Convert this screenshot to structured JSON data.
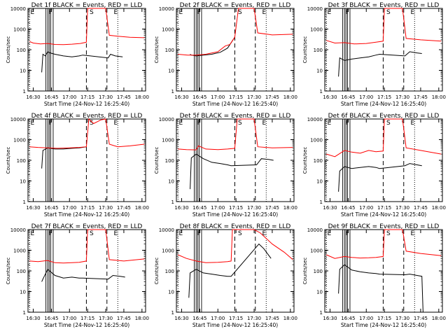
{
  "figure": {
    "xlabel": "Start Time (24-Nov-12 16:25:40)",
    "ylabel": "Counts/sec",
    "xticks": [
      "16:30",
      "16:45",
      "17:00",
      "17:15",
      "17:30",
      "17:45",
      "18:00"
    ],
    "yticks": [
      "1",
      "10",
      "100",
      "1000",
      "10000"
    ],
    "colors": {
      "events": "#000000",
      "lld": "#ff0000",
      "axes": "#000000"
    }
  },
  "chart_data": [
    {
      "type": "line",
      "title": "Det 1f BLACK = Events, RED = LLD",
      "yscale": "log",
      "xlim": [
        "16:25:40",
        "18:03:00"
      ],
      "ylim": [
        1,
        10000
      ],
      "markers": [
        {
          "label": "E",
          "x": "16:27"
        },
        {
          "label": "F",
          "x": "16:42"
        },
        {
          "label": "S",
          "x": "17:16"
        },
        {
          "label": "E",
          "x": "17:36"
        }
      ],
      "series": [
        {
          "name": "Events",
          "x": [
            "16:37",
            "16:38",
            "16:40",
            "16:42",
            "16:44",
            "16:48",
            "16:55",
            "17:02",
            "17:08",
            "17:11",
            "17:32",
            "17:34",
            "17:38",
            "17:44"
          ],
          "values": [
            8,
            60,
            50,
            80,
            70,
            60,
            50,
            45,
            50,
            55,
            40,
            60,
            50,
            45
          ]
        },
        {
          "name": "LLD",
          "x": [
            "16:27",
            "16:30",
            "16:36",
            "16:42",
            "16:48",
            "16:55",
            "17:02",
            "17:09",
            "17:14",
            "17:15",
            "17:30",
            "17:33",
            "17:40",
            "17:50",
            "18:02"
          ],
          "values": [
            250,
            210,
            190,
            200,
            180,
            175,
            185,
            200,
            230,
            10000,
            10000,
            500,
            450,
            400,
            380
          ]
        }
      ]
    },
    {
      "type": "line",
      "title": "Det 2f BLACK = Events, RED = LLD",
      "yscale": "log",
      "xlim": [
        "16:25:40",
        "18:03:00"
      ],
      "ylim": [
        1,
        10000
      ],
      "markers": [
        {
          "label": "E",
          "x": "16:27"
        },
        {
          "label": "F",
          "x": "16:42"
        },
        {
          "label": "S",
          "x": "17:16"
        },
        {
          "label": "E",
          "x": "17:36"
        }
      ],
      "series": [
        {
          "name": "Events",
          "x": [
            "16:37",
            "16:38",
            "16:42",
            "16:48",
            "16:55",
            "17:02",
            "17:08",
            "17:14"
          ],
          "values": [
            60,
            55,
            50,
            55,
            60,
            75,
            120,
            400
          ]
        },
        {
          "name": "LLD",
          "x": [
            "16:27",
            "16:35",
            "16:42",
            "16:50",
            "17:00",
            "17:06",
            "17:10",
            "17:14",
            "17:17",
            "17:30",
            "17:33",
            "17:45",
            "18:02"
          ],
          "values": [
            60,
            55,
            55,
            60,
            80,
            150,
            180,
            400,
            10000,
            10000,
            650,
            520,
            560
          ]
        }
      ]
    },
    {
      "type": "line",
      "title": "Det 3f BLACK = Events, RED = LLD",
      "yscale": "log",
      "xlim": [
        "16:25:40",
        "18:03:00"
      ],
      "ylim": [
        1,
        10000
      ],
      "markers": [
        {
          "label": "E",
          "x": "16:27"
        },
        {
          "label": "F",
          "x": "16:42"
        },
        {
          "label": "S",
          "x": "17:16"
        },
        {
          "label": "E",
          "x": "17:36"
        }
      ],
      "series": [
        {
          "name": "Events",
          "x": [
            "16:37",
            "16:38",
            "16:42",
            "16:48",
            "16:55",
            "17:02",
            "17:08",
            "17:11",
            "17:32",
            "17:36",
            "17:42",
            "17:46"
          ],
          "values": [
            5,
            40,
            30,
            35,
            40,
            45,
            55,
            60,
            50,
            80,
            70,
            65
          ]
        },
        {
          "name": "LLD",
          "x": [
            "16:27",
            "16:34",
            "16:42",
            "16:50",
            "17:00",
            "17:08",
            "17:14",
            "17:15",
            "17:30",
            "17:33",
            "17:45",
            "18:02"
          ],
          "values": [
            280,
            210,
            220,
            190,
            200,
            230,
            260,
            10000,
            10000,
            350,
            300,
            260
          ]
        }
      ]
    },
    {
      "type": "line",
      "title": "Det 4f BLACK = Events, RED = LLD",
      "yscale": "log",
      "xlim": [
        "16:25:40",
        "18:03:00"
      ],
      "ylim": [
        1,
        10000
      ],
      "markers": [
        {
          "label": "E",
          "x": "16:27"
        },
        {
          "label": "F",
          "x": "16:42"
        },
        {
          "label": "S",
          "x": "17:16"
        },
        {
          "label": "E",
          "x": "17:36"
        }
      ],
      "series": [
        {
          "name": "Events",
          "x": [
            "16:37",
            "16:38",
            "16:42",
            "16:48",
            "16:55",
            "17:02",
            "17:08",
            "17:14"
          ],
          "values": [
            40,
            300,
            400,
            350,
            350,
            380,
            400,
            450
          ]
        },
        {
          "name": "LLD",
          "x": [
            "16:27",
            "16:34",
            "16:42",
            "16:50",
            "17:00",
            "17:08",
            "17:14",
            "17:16",
            "17:20",
            "17:26",
            "17:30",
            "17:33",
            "17:40",
            "17:50",
            "18:02"
          ],
          "values": [
            450,
            420,
            400,
            380,
            400,
            420,
            450,
            10000,
            6000,
            9000,
            10000,
            600,
            450,
            500,
            600
          ]
        }
      ]
    },
    {
      "type": "line",
      "title": "Det 5f BLACK = Events, RED = LLD",
      "yscale": "log",
      "xlim": [
        "16:25:40",
        "18:03:00"
      ],
      "ylim": [
        1,
        10000
      ],
      "markers": [
        {
          "label": "E",
          "x": "16:27"
        },
        {
          "label": "F",
          "x": "16:42"
        },
        {
          "label": "S",
          "x": "17:16"
        },
        {
          "label": "E",
          "x": "17:36"
        }
      ],
      "series": [
        {
          "name": "Events",
          "x": [
            "16:37",
            "16:38",
            "16:42",
            "16:48",
            "16:55",
            "17:02",
            "17:08",
            "17:11",
            "17:32",
            "17:36",
            "17:42",
            "17:46"
          ],
          "values": [
            4,
            130,
            200,
            120,
            80,
            70,
            60,
            55,
            60,
            120,
            110,
            100
          ]
        },
        {
          "name": "LLD",
          "x": [
            "16:27",
            "16:34",
            "16:42",
            "16:44",
            "16:50",
            "17:00",
            "17:08",
            "17:14",
            "17:16",
            "17:30",
            "17:33",
            "17:45",
            "18:02"
          ],
          "values": [
            350,
            330,
            320,
            500,
            350,
            330,
            350,
            380,
            10000,
            10000,
            450,
            400,
            420
          ]
        }
      ]
    },
    {
      "type": "line",
      "title": "Det 6f BLACK = Events, RED = LLD",
      "yscale": "log",
      "xlim": [
        "16:25:40",
        "18:03:00"
      ],
      "ylim": [
        1,
        10000
      ],
      "markers": [
        {
          "label": "E",
          "x": "16:27"
        },
        {
          "label": "F",
          "x": "16:42"
        },
        {
          "label": "S",
          "x": "17:16"
        },
        {
          "label": "E",
          "x": "17:36"
        }
      ],
      "series": [
        {
          "name": "Events",
          "x": [
            "16:37",
            "16:38",
            "16:42",
            "16:48",
            "16:55",
            "17:02",
            "17:08",
            "17:11",
            "17:32",
            "17:36",
            "17:42",
            "17:46"
          ],
          "values": [
            3,
            30,
            50,
            40,
            45,
            50,
            45,
            40,
            55,
            70,
            60,
            55
          ]
        },
        {
          "name": "LLD",
          "x": [
            "16:27",
            "16:34",
            "16:42",
            "16:48",
            "16:55",
            "17:02",
            "17:08",
            "17:14",
            "17:15",
            "17:30",
            "17:33",
            "17:45",
            "18:02"
          ],
          "values": [
            200,
            150,
            300,
            250,
            220,
            300,
            260,
            280,
            10000,
            10000,
            400,
            300,
            200
          ]
        }
      ]
    },
    {
      "type": "line",
      "title": "Det 7f BLACK = Events, RED = LLD",
      "yscale": "log",
      "xlim": [
        "16:25:40",
        "18:03:00"
      ],
      "ylim": [
        1,
        10000
      ],
      "markers": [
        {
          "label": "E",
          "x": "16:27"
        },
        {
          "label": "F",
          "x": "16:42"
        },
        {
          "label": "S",
          "x": "17:16"
        },
        {
          "label": "E",
          "x": "17:36"
        }
      ],
      "series": [
        {
          "name": "Events",
          "x": [
            "16:37",
            "16:38",
            "16:42",
            "16:48",
            "16:55",
            "17:02",
            "17:08",
            "17:11",
            "17:32",
            "17:36",
            "17:42",
            "17:46"
          ],
          "values": [
            30,
            40,
            120,
            60,
            45,
            50,
            45,
            45,
            40,
            60,
            55,
            50
          ]
        },
        {
          "name": "LLD",
          "x": [
            "16:27",
            "16:34",
            "16:42",
            "16:48",
            "16:55",
            "17:02",
            "17:08",
            "17:14",
            "17:15",
            "17:30",
            "17:33",
            "17:45",
            "18:02"
          ],
          "values": [
            300,
            280,
            320,
            250,
            240,
            250,
            260,
            300,
            10000,
            10000,
            350,
            300,
            380
          ]
        }
      ]
    },
    {
      "type": "line",
      "title": "Det 8f BLACK = Events, RED = LLD",
      "yscale": "log",
      "xlim": [
        "16:25:40",
        "18:03:00"
      ],
      "ylim": [
        1,
        10000
      ],
      "markers": [
        {
          "label": "E",
          "x": "16:27"
        },
        {
          "label": "F",
          "x": "16:42"
        },
        {
          "label": "S",
          "x": "17:16"
        },
        {
          "label": "E",
          "x": "17:36"
        }
      ],
      "series": [
        {
          "name": "Events",
          "x": [
            "16:36",
            "16:37",
            "16:42",
            "16:48",
            "16:55",
            "17:02",
            "17:08",
            "17:11",
            "17:34",
            "17:38",
            "17:44"
          ],
          "values": [
            5,
            80,
            120,
            80,
            70,
            60,
            55,
            55,
            2000,
            1200,
            400
          ]
        },
        {
          "name": "LLD",
          "x": [
            "16:27",
            "16:34",
            "16:42",
            "16:50",
            "17:00",
            "17:08",
            "17:11",
            "17:12",
            "17:30",
            "17:35",
            "17:45",
            "17:55",
            "18:02"
          ],
          "values": [
            600,
            400,
            300,
            250,
            260,
            280,
            300,
            10000,
            10000,
            7000,
            2000,
            800,
            350
          ]
        }
      ]
    },
    {
      "type": "line",
      "title": "Det 9f BLACK = Events, RED = LLD",
      "yscale": "log",
      "xlim": [
        "16:25:40",
        "18:03:00"
      ],
      "ylim": [
        1,
        10000
      ],
      "markers": [
        {
          "label": "E",
          "x": "16:27"
        },
        {
          "label": "F",
          "x": "16:42"
        },
        {
          "label": "S",
          "x": "17:16"
        },
        {
          "label": "E",
          "x": "17:36"
        }
      ],
      "series": [
        {
          "name": "Events",
          "x": [
            "16:37",
            "16:38",
            "16:42",
            "16:48",
            "16:55",
            "17:02",
            "17:08",
            "17:11",
            "17:32",
            "17:36",
            "17:42",
            "17:46",
            "17:47"
          ],
          "values": [
            8,
            120,
            200,
            110,
            90,
            80,
            75,
            70,
            65,
            70,
            60,
            55,
            1
          ]
        },
        {
          "name": "LLD",
          "x": [
            "16:27",
            "16:34",
            "16:42",
            "16:48",
            "16:55",
            "17:02",
            "17:08",
            "17:14",
            "17:15",
            "17:30",
            "17:33",
            "17:45",
            "18:02"
          ],
          "values": [
            600,
            400,
            500,
            450,
            420,
            430,
            450,
            500,
            10000,
            10000,
            900,
            700,
            550
          ]
        }
      ]
    }
  ]
}
